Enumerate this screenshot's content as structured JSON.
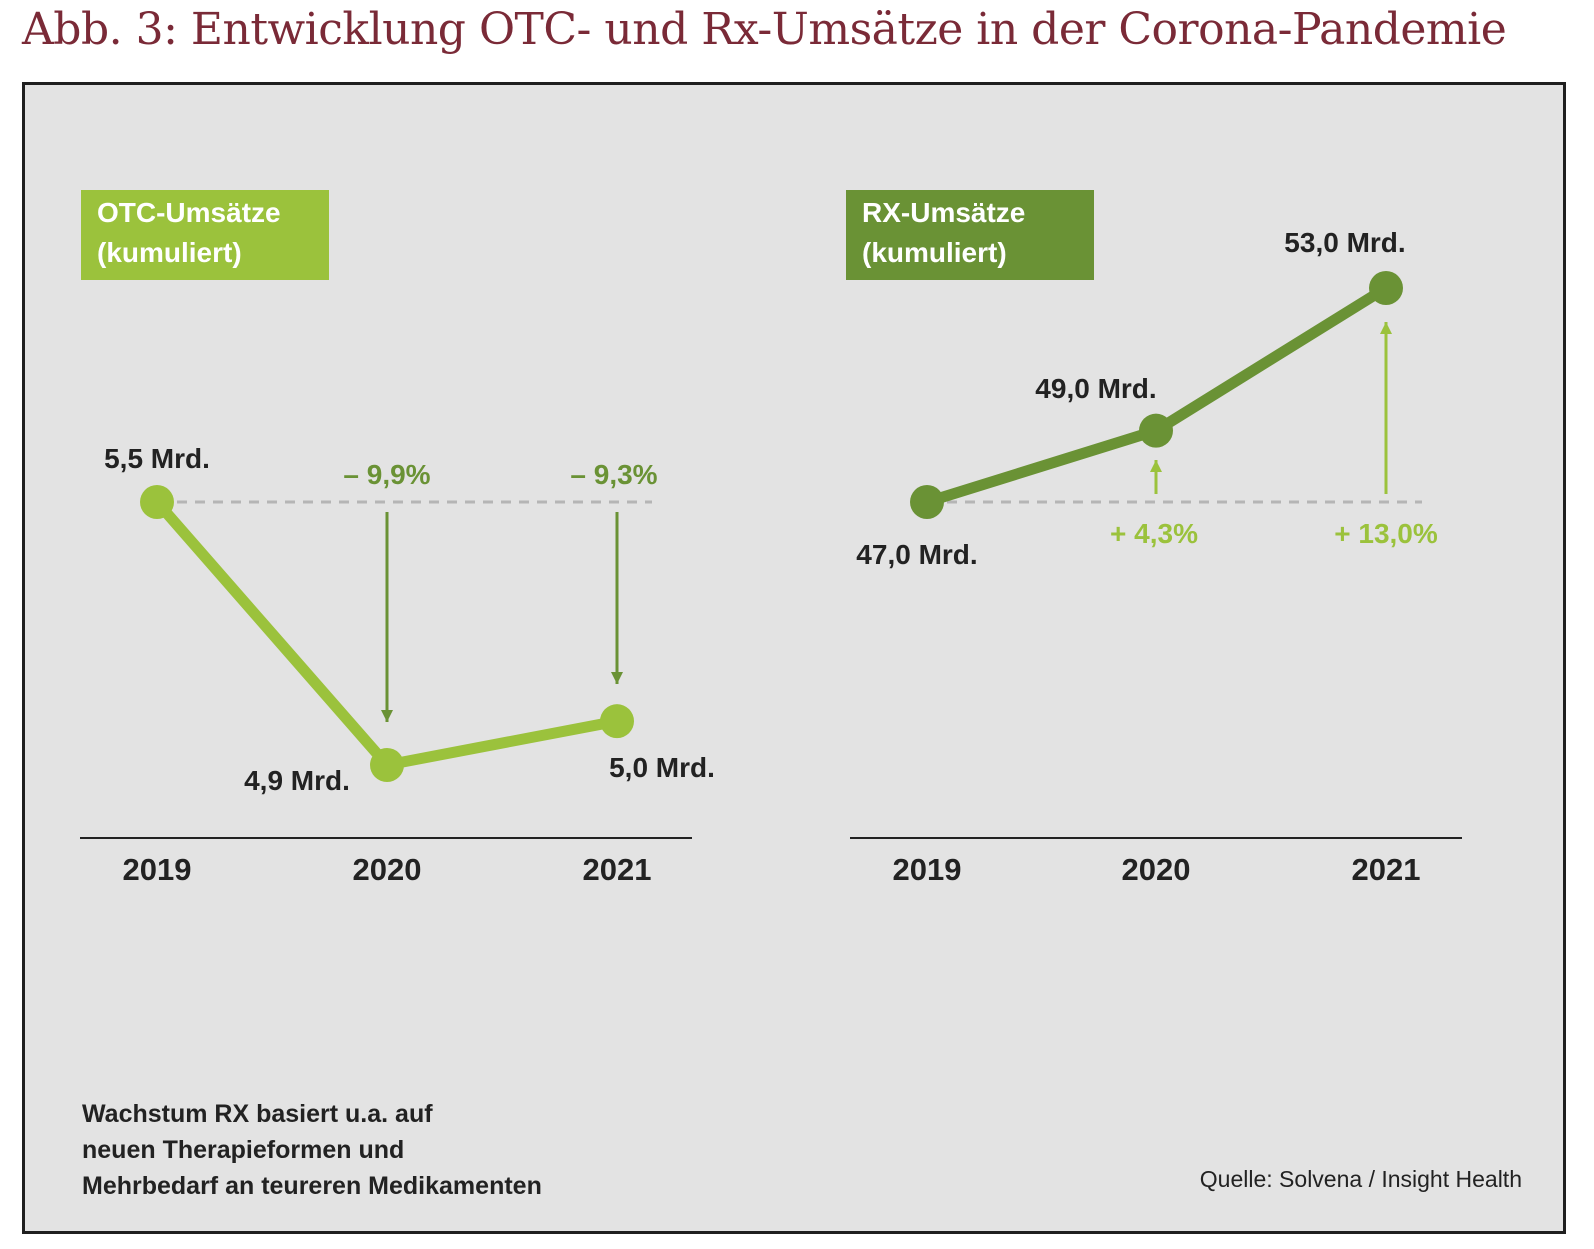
{
  "title": "Abb. 3: Entwicklung OTC- und Rx-Umsätze in der Corona-Pandemie",
  "colors": {
    "light_green": "#9bc23c",
    "dark_green": "#6a9235",
    "title": "#7a2a37",
    "panel_bg": "#e3e3e3"
  },
  "chart_data": [
    {
      "type": "line",
      "title": "OTC-Umsätze (kumuliert)",
      "title_lines": [
        "OTC-Umsätze",
        "(kumuliert)"
      ],
      "categories": [
        "2019",
        "2020",
        "2021"
      ],
      "values": [
        5.5,
        4.9,
        5.0
      ],
      "value_labels": [
        "5,5 Mrd.",
        "4,9 Mrd.",
        "5,0 Mrd."
      ],
      "changes": [
        null,
        "– 9,9%",
        "– 9,3%"
      ],
      "ylim": [
        4.8,
        5.6
      ]
    },
    {
      "type": "line",
      "title": "RX-Umsätze (kumuliert)",
      "title_lines": [
        "RX-Umsätze",
        "(kumuliert)"
      ],
      "categories": [
        "2019",
        "2020",
        "2021"
      ],
      "values": [
        47.0,
        49.0,
        53.0
      ],
      "value_labels": [
        "47,0 Mrd.",
        "49,0 Mrd.",
        "53,0 Mrd."
      ],
      "changes": [
        null,
        "+ 4,3%",
        "+ 13,0%"
      ],
      "ylim": [
        41.0,
        54.0
      ]
    }
  ],
  "note_lines": [
    "Wachstum RX basiert u.a. auf",
    "neuen Therapieformen und",
    "Mehrbedarf an teureren Medikamenten"
  ],
  "source": "Quelle: Solvena / Insight Health"
}
